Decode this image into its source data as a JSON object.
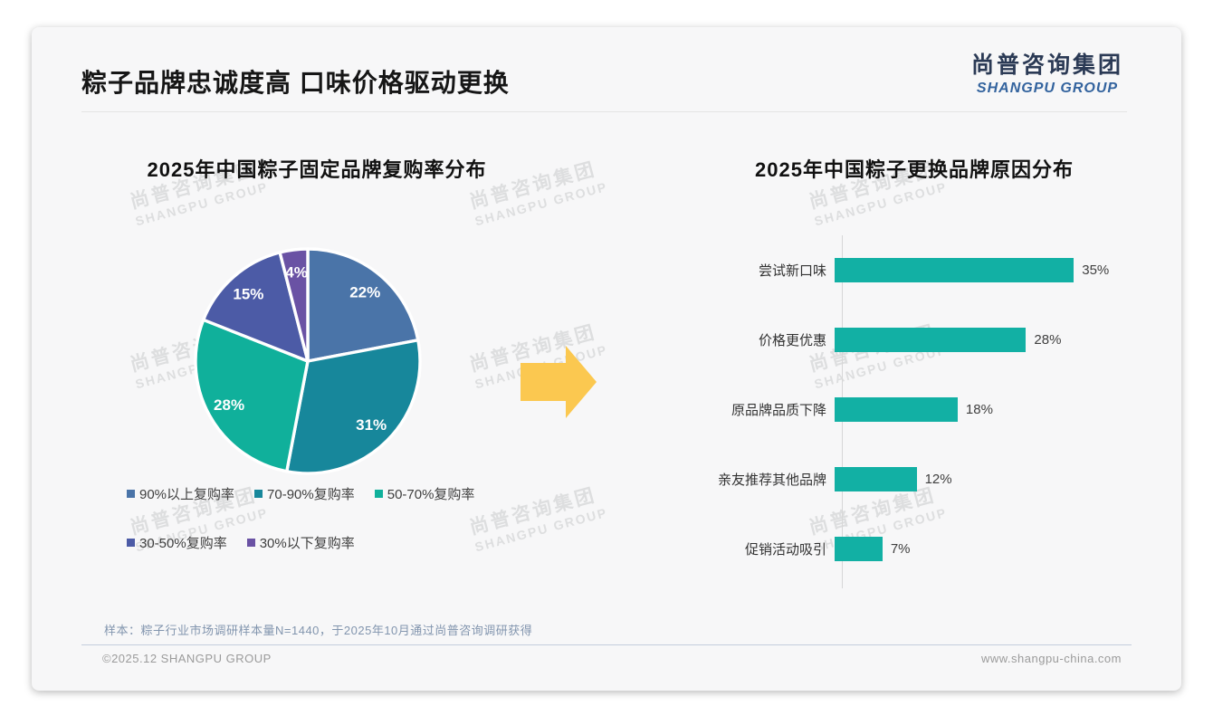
{
  "page": {
    "title": "粽子品牌忠诚度高 口味价格驱动更换",
    "logo": {
      "cn": "尚普咨询集团",
      "en": "SHANGPU GROUP"
    }
  },
  "watermark": {
    "cn": "尚普咨询集团",
    "en": "SHANGPU GROUP"
  },
  "arrow": {
    "color": "#fbc850"
  },
  "chart_data": [
    {
      "type": "pie",
      "title": "2025年中国粽子固定品牌复购率分布",
      "labels": [
        "90%以上复购率",
        "70-90%复购率",
        "50-70%复购率",
        "30-50%复购率",
        "30%以下复购率"
      ],
      "values": [
        22,
        31,
        28,
        15,
        4
      ],
      "value_labels": [
        "22%",
        "31%",
        "28%",
        "15%",
        "4%"
      ],
      "colors": [
        "#4a74a8",
        "#17879b",
        "#10b09b",
        "#4c5ba6",
        "#6a52a4"
      ],
      "start_angle_deg": 0,
      "direction": "clockwise",
      "legend_position": "bottom"
    },
    {
      "type": "bar",
      "title": "2025年中国粽子更换品牌原因分布",
      "orientation": "horizontal",
      "categories": [
        "尝试新口味",
        "价格更优惠",
        "原品牌品质下降",
        "亲友推荐其他品牌",
        "促销活动吸引"
      ],
      "values": [
        35,
        28,
        18,
        12,
        7
      ],
      "value_labels": [
        "35%",
        "28%",
        "18%",
        "12%",
        "7%"
      ],
      "bar_color": "#12b0a4",
      "xlim": [
        0,
        40
      ],
      "grid": false,
      "axis_line": true
    }
  ],
  "footer": {
    "note": "样本：粽子行业市场调研样本量N=1440，于2025年10月通过尚普咨询调研获得",
    "copyright": "©2025.12 SHANGPU GROUP",
    "website": "www.shangpu-china.com"
  }
}
